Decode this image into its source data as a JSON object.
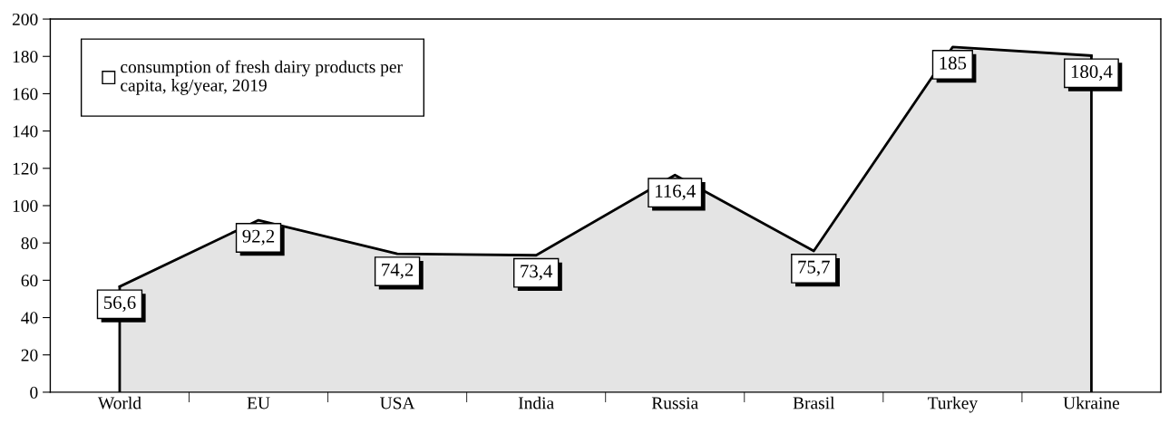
{
  "chart_data": {
    "type": "area",
    "categories": [
      "World",
      "EU",
      "USA",
      "India",
      "Russia",
      "Brasil",
      "Turkey",
      "Ukraine"
    ],
    "series": [
      {
        "name": "consumption of fresh dairy products per\ncapita, kg/year, 2019",
        "color": "#e4e4e4",
        "values": [
          56.6,
          92.2,
          74.2,
          73.4,
          116.4,
          75.7,
          185,
          180.4
        ],
        "value_labels": [
          "56,6",
          "92,2",
          "74,2",
          "73,4",
          "116,4",
          "75,7",
          "185",
          "180,4"
        ]
      }
    ],
    "ylim": [
      0,
      200
    ],
    "yticks": [
      0,
      20,
      40,
      60,
      80,
      100,
      120,
      140,
      160,
      180,
      200
    ],
    "legend": "top left"
  }
}
